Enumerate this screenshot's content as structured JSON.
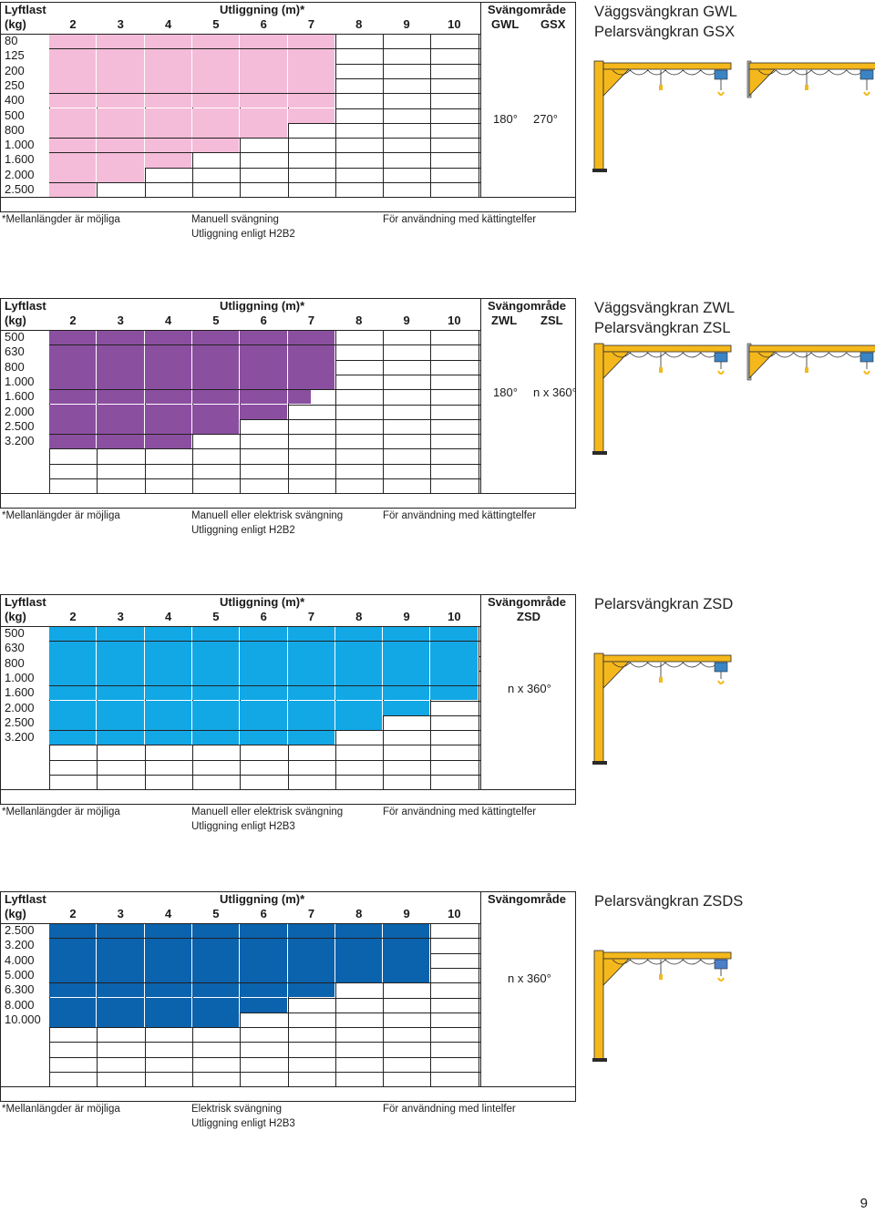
{
  "page_number": "9",
  "common": {
    "lift_label": "Lyftlast",
    "kg_label": "(kg)",
    "reach_label": "Utliggning (m)*",
    "swing_label": "Svängområde",
    "reach_cols": [
      "2",
      "3",
      "4",
      "5",
      "6",
      "7",
      "8",
      "9",
      "10"
    ]
  },
  "sections": [
    {
      "color": "#f4bcd8",
      "swing_sub": [
        "GWL",
        "GSX"
      ],
      "rows": [
        "80",
        "125",
        "200",
        "250",
        "400",
        "500",
        "800",
        "1.000",
        "1.600",
        "2.000",
        "2.500"
      ],
      "fill_counts": [
        6,
        6,
        6,
        6,
        6,
        6,
        5,
        4,
        3,
        2,
        1
      ],
      "swing_values": [
        "180°",
        "270°"
      ],
      "notes": [
        "*Mellanlängder är möjliga",
        "Manuell svängning",
        "Utliggning enligt H2B2",
        "För användning med kättingtelfer"
      ],
      "titles": [
        "Väggsvängkran GWL",
        "Pelarsvängkran GSX"
      ]
    },
    {
      "color": "#8b4fa0",
      "swing_sub": [
        "ZWL",
        "ZSL"
      ],
      "rows": [
        "500",
        "630",
        "800",
        "1.000",
        "1.600",
        "2.000",
        "2.500",
        "3.200"
      ],
      "fill_counts": [
        6,
        6,
        6,
        6,
        5.5,
        5,
        4,
        3
      ],
      "swing_values": [
        "180°",
        "n x 360°"
      ],
      "notes": [
        "*Mellanlängder är möjliga",
        "Manuell eller elektrisk svängning",
        "Utliggning enligt H2B2",
        "För användning med kättingtelfer"
      ],
      "titles": [
        "Väggsvängkran ZWL",
        "Pelarsvängkran ZSL"
      ]
    },
    {
      "color": "#12a8e6",
      "swing_sub": [
        "ZSD"
      ],
      "rows": [
        "500",
        "630",
        "800",
        "1.000",
        "1.600",
        "2.000",
        "2.500",
        "3.200"
      ],
      "fill_counts": [
        9,
        9,
        9,
        9,
        9,
        8,
        7,
        6
      ],
      "swing_values": [
        "n x 360°"
      ],
      "notes": [
        "*Mellanlängder är möjliga",
        "Manuell eller elektrisk svängning",
        "Utliggning enligt H2B3",
        "För användning med kättingtelfer"
      ],
      "titles": [
        "Pelarsvängkran ZSD"
      ]
    },
    {
      "color": "#0b62ad",
      "swing_sub": [],
      "rows": [
        "2.500",
        "3.200",
        "4.000",
        "5.000",
        "6.300",
        "8.000",
        "10.000"
      ],
      "fill_counts": [
        8,
        8,
        8,
        8,
        6,
        5,
        4
      ],
      "swing_values": [
        "n x 360°"
      ],
      "notes": [
        "*Mellanlängder är möjliga",
        "Elektrisk svängning",
        "Utliggning enligt H2B3",
        "För användning med lintelfer"
      ],
      "titles": [
        "Pelarsvängkran ZSDS"
      ]
    }
  ]
}
